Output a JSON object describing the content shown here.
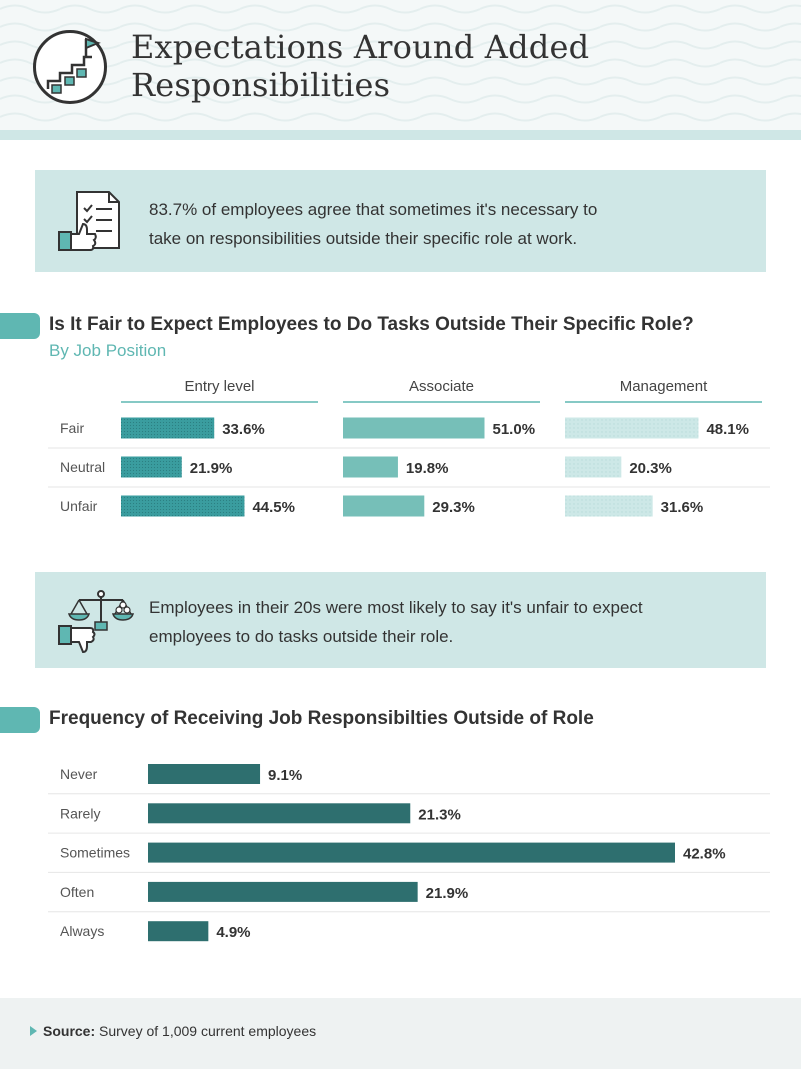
{
  "header": {
    "title_line1": "Expectations Around Added",
    "title_line2": "Responsibilities",
    "badge_icon": "stairs-flag-checkmark-icon"
  },
  "callout1": {
    "line1": "83.7% of employees agree that sometimes it's necessary to",
    "line2": "take on responsibilities outside their specific role at work.",
    "icon": "checklist-thumbs-up-icon"
  },
  "callout2": {
    "line1": "Employees in their 20s were most likely to say it's unfair to expect",
    "line2": "employees to do tasks outside their role.",
    "icon": "scale-thumbs-down-icon"
  },
  "colors": {
    "entry": "#3a9d9f",
    "associate": "#76bfb8",
    "management": "#cde8e7",
    "frequency": "#2e6f6f",
    "accent": "#5fb7b2",
    "callout_bg": "#cfe7e6"
  },
  "chart_data": [
    {
      "type": "bar",
      "title": "Is It Fair to Expect Employees to Do Tasks Outside Their Specific Role?",
      "subtitle": "By Job Position",
      "categories": [
        "Fair",
        "Neutral",
        "Unfair"
      ],
      "unit": "%",
      "series": [
        {
          "name": "Entry level",
          "values": [
            33.6,
            21.9,
            44.5
          ],
          "labels": [
            "33.6%",
            "21.9%",
            "44.5%"
          ]
        },
        {
          "name": "Associate",
          "values": [
            51.0,
            19.8,
            29.3
          ],
          "labels": [
            "51.0%",
            "19.8%",
            "29.3%"
          ]
        },
        {
          "name": "Management",
          "values": [
            48.1,
            20.3,
            31.6
          ],
          "labels": [
            "48.1%",
            "20.3%",
            "31.6%"
          ]
        }
      ]
    },
    {
      "type": "bar",
      "title": "Frequency of Receiving Job Responsibilties Outside of Role",
      "categories": [
        "Never",
        "Rarely",
        "Sometimes",
        "Often",
        "Always"
      ],
      "values": [
        9.1,
        21.3,
        42.8,
        21.9,
        4.9
      ],
      "labels": [
        "9.1%",
        "21.3%",
        "42.8%",
        "21.9%",
        "4.9%"
      ],
      "unit": "%"
    }
  ],
  "footer": {
    "source_label": "Source:",
    "source_text": "Survey of 1,009 current employees"
  }
}
